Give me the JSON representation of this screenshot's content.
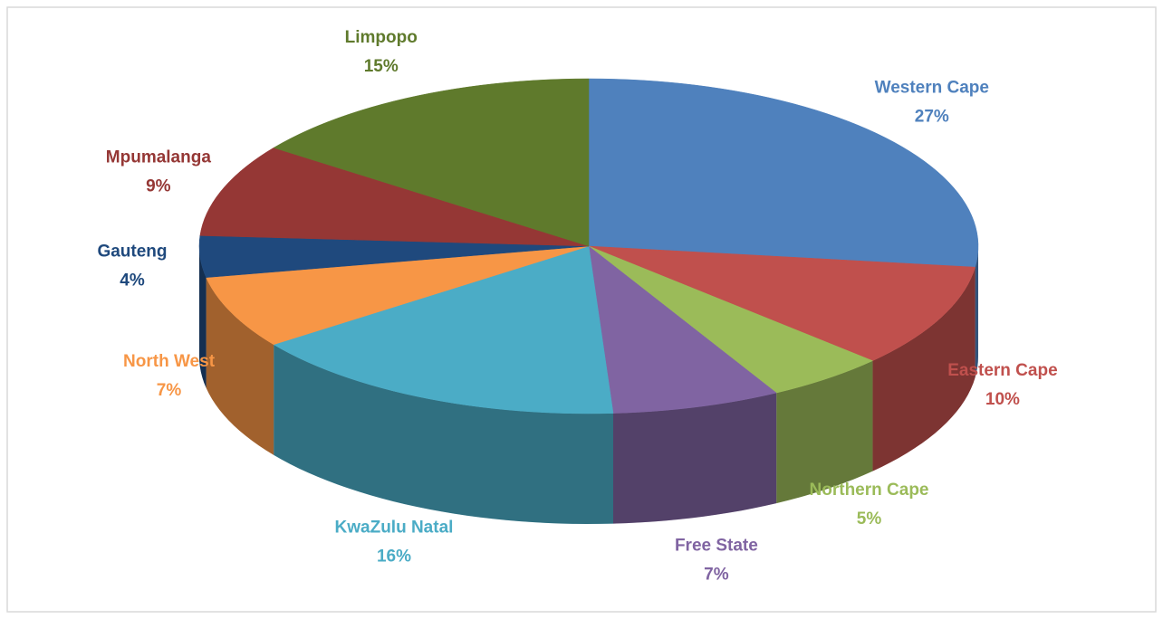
{
  "chart_data": {
    "type": "pie3d",
    "categories": [
      "Western Cape",
      "Eastern Cape",
      "Northern Cape",
      "Free State",
      "KwaZulu Natal",
      "North West",
      "Gauteng",
      "Mpumalanga",
      "Limpopo"
    ],
    "values": [
      27,
      10,
      5,
      7,
      16,
      7,
      4,
      9,
      15
    ],
    "value_labels": [
      "27%",
      "10%",
      "5%",
      "7%",
      "16%",
      "7%",
      "4%",
      "9%",
      "15%"
    ],
    "colors": [
      "#4f81bd",
      "#c0504d",
      "#9bbb59",
      "#8064a2",
      "#4bacc6",
      "#f79646",
      "#1f497d",
      "#953735",
      "#5f7a2c"
    ]
  }
}
